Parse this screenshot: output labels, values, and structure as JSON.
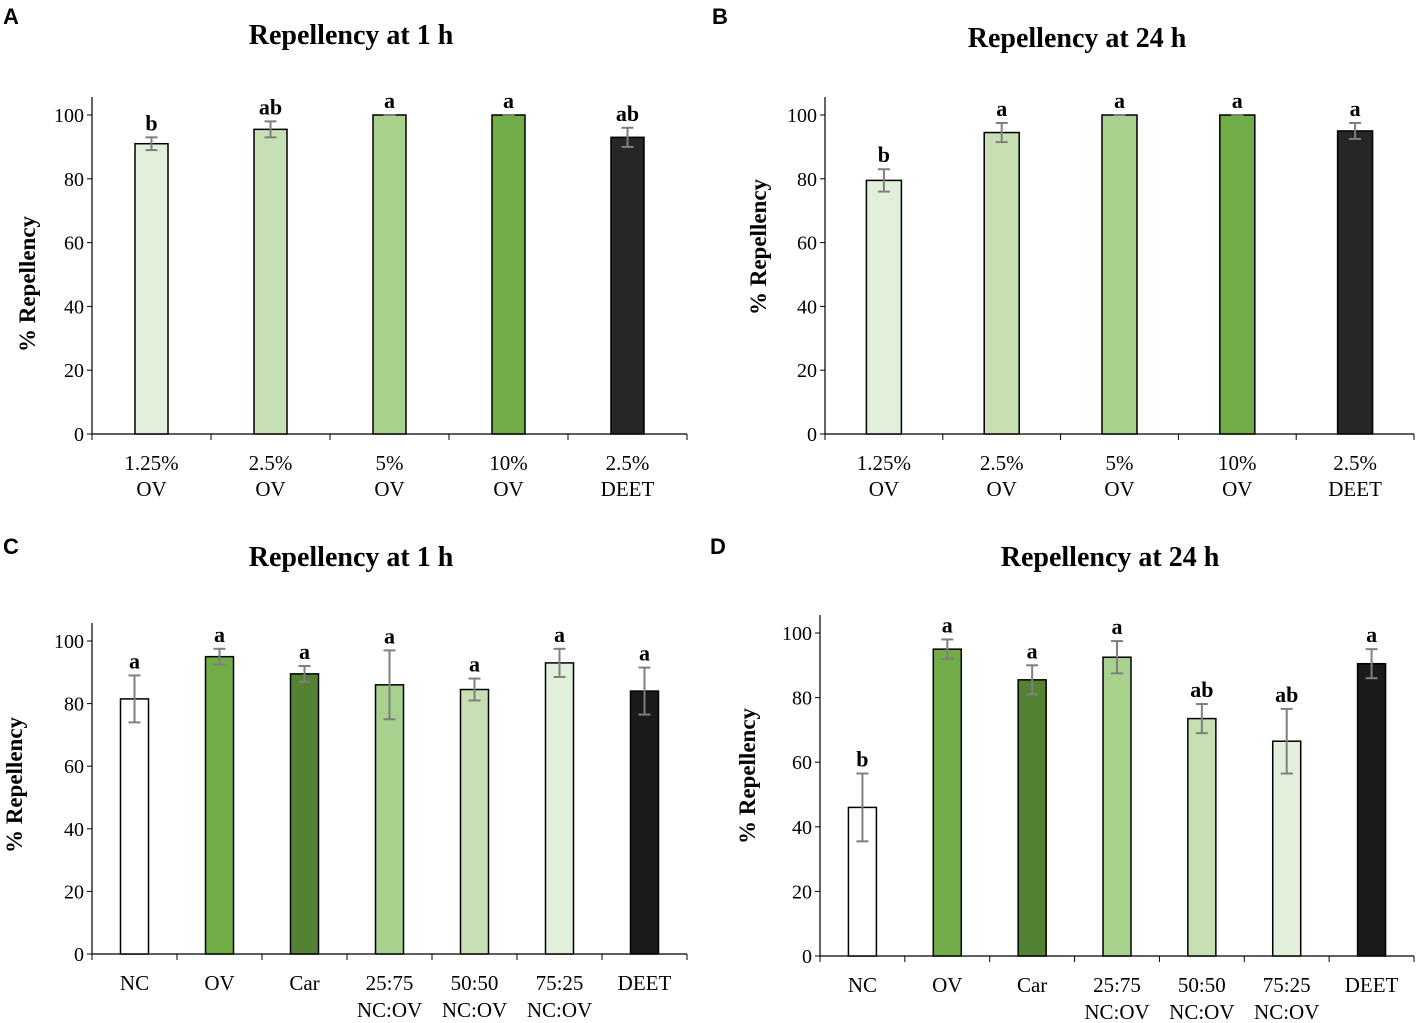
{
  "chart_data": [
    {
      "panel": "A",
      "type": "bar",
      "title": "Repellency at 1 h",
      "ylabel": "%  Repellency",
      "xlabel": "",
      "ylim": [
        0,
        100
      ],
      "yticks": [
        0,
        20,
        40,
        60,
        80,
        100
      ],
      "categories": [
        [
          "1.25%",
          "OV"
        ],
        [
          "2.5%",
          "OV"
        ],
        [
          "5%",
          "OV"
        ],
        [
          "10%",
          "OV"
        ],
        [
          "2.5%",
          "DEET"
        ]
      ],
      "values": [
        91,
        95.5,
        100,
        100,
        93
      ],
      "errors": [
        2,
        2.5,
        0,
        0,
        3
      ],
      "significance": [
        "b",
        "ab",
        "a",
        "a",
        "ab"
      ],
      "colors": [
        "#e2efda",
        "#c6e0b4",
        "#a9d18e",
        "#70ad47",
        "#262626"
      ]
    },
    {
      "panel": "B",
      "type": "bar",
      "title": "Repellency at 24 h",
      "ylabel": "%  Repellency",
      "xlabel": "",
      "ylim": [
        0,
        100
      ],
      "yticks": [
        0,
        20,
        40,
        60,
        80,
        100
      ],
      "categories": [
        [
          "1.25%",
          "OV"
        ],
        [
          "2.5%",
          "OV"
        ],
        [
          "5%",
          "OV"
        ],
        [
          "10%",
          "OV"
        ],
        [
          "2.5%",
          "DEET"
        ]
      ],
      "values": [
        79.5,
        94.5,
        100,
        100,
        95
      ],
      "errors": [
        3.5,
        3,
        0,
        0,
        2.5
      ],
      "significance": [
        "b",
        "a",
        "a",
        "a",
        "a"
      ],
      "colors": [
        "#e2efda",
        "#c6e0b4",
        "#a9d18e",
        "#70ad47",
        "#262626"
      ]
    },
    {
      "panel": "C",
      "type": "bar",
      "title": "Repellency at 1 h",
      "ylabel": "%  Repellency",
      "xlabel": "",
      "ylim": [
        0,
        100
      ],
      "yticks": [
        0,
        20,
        40,
        60,
        80,
        100
      ],
      "categories": [
        [
          "NC"
        ],
        [
          "OV"
        ],
        [
          "Car"
        ],
        [
          "25:75",
          "NC:OV"
        ],
        [
          "50:50",
          "NC:OV"
        ],
        [
          "75:25",
          "NC:OV"
        ],
        [
          "DEET"
        ]
      ],
      "values": [
        81.5,
        95,
        89.5,
        86,
        84.5,
        93,
        84
      ],
      "errors": [
        7.5,
        2.5,
        2.5,
        11,
        3.5,
        4.5,
        7.5
      ],
      "significance": [
        "a",
        "a",
        "a",
        "a",
        "a",
        "a",
        "a"
      ],
      "colors": [
        "#ffffff",
        "#70ad47",
        "#548235",
        "#a9d18e",
        "#c6e0b4",
        "#e2efda",
        "#1a1a1a"
      ]
    },
    {
      "panel": "D",
      "type": "bar",
      "title": "Repellency at 24 h",
      "ylabel": "%  Repellency",
      "xlabel": "",
      "ylim": [
        0,
        100
      ],
      "yticks": [
        0,
        20,
        40,
        60,
        80,
        100
      ],
      "categories": [
        [
          "NC"
        ],
        [
          "OV"
        ],
        [
          "Car"
        ],
        [
          "25:75",
          "NC:OV"
        ],
        [
          "50:50",
          "NC:OV"
        ],
        [
          "75:25",
          "NC:OV"
        ],
        [
          "DEET"
        ]
      ],
      "values": [
        46,
        95,
        85.5,
        92.5,
        73.5,
        66.5,
        90.5
      ],
      "errors": [
        10.5,
        3,
        4.5,
        5,
        4.5,
        10,
        4.5
      ],
      "significance": [
        "b",
        "a",
        "a",
        "a",
        "ab",
        "ab",
        "a"
      ],
      "colors": [
        "#ffffff",
        "#70ad47",
        "#548235",
        "#a9d18e",
        "#c6e0b4",
        "#e2efda",
        "#1a1a1a"
      ]
    }
  ]
}
